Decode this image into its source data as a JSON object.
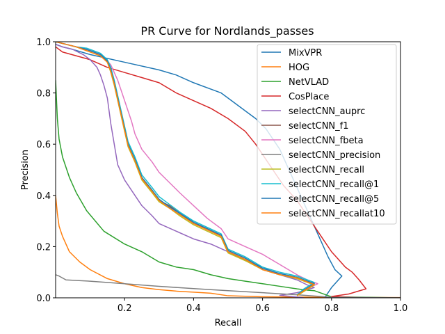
{
  "chart_data": {
    "type": "line",
    "title": "PR Curve for Nordlands_passes",
    "xlabel": "Recall",
    "ylabel": "Precision",
    "xlim": [
      0.0,
      1.0
    ],
    "ylim": [
      0.0,
      1.0
    ],
    "xticks": [
      "0.2",
      "0.4",
      "0.6",
      "0.8",
      "1.0"
    ],
    "xtick_values": [
      0.2,
      0.4,
      0.6,
      0.8,
      1.0
    ],
    "yticks": [
      "0.0",
      "0.2",
      "0.4",
      "0.6",
      "0.8",
      "1.0"
    ],
    "ytick_values": [
      0.0,
      0.2,
      0.4,
      0.6,
      0.8,
      1.0
    ],
    "grid": false,
    "legend_position": "top-right",
    "series": [
      {
        "name": "MixVPR",
        "color": "#1f77b4",
        "x": [
          0.0,
          0.02,
          0.05,
          0.1,
          0.2,
          0.3,
          0.35,
          0.4,
          0.45,
          0.48,
          0.51,
          0.55,
          0.58,
          0.61,
          0.63,
          0.65,
          0.67,
          0.69,
          0.71,
          0.73,
          0.75,
          0.77,
          0.79,
          0.81,
          0.83,
          0.8,
          0.78,
          0.9,
          1.0
        ],
        "y": [
          0.99,
          0.98,
          0.97,
          0.95,
          0.92,
          0.89,
          0.87,
          0.84,
          0.815,
          0.8,
          0.77,
          0.73,
          0.7,
          0.66,
          0.62,
          0.58,
          0.52,
          0.46,
          0.4,
          0.34,
          0.28,
          0.22,
          0.16,
          0.11,
          0.085,
          0.04,
          0.0,
          0.0,
          0.0
        ]
      },
      {
        "name": "HOG",
        "color": "#ff7f0e",
        "x": [
          0.0,
          0.005,
          0.01,
          0.02,
          0.04,
          0.07,
          0.1,
          0.15,
          0.2,
          0.25,
          0.3,
          0.35,
          0.4,
          0.45,
          0.5,
          0.6,
          0.8,
          1.0
        ],
        "y": [
          0.4,
          0.33,
          0.28,
          0.24,
          0.18,
          0.14,
          0.11,
          0.075,
          0.055,
          0.04,
          0.032,
          0.026,
          0.022,
          0.018,
          0.008,
          0.004,
          0.002,
          0.001
        ]
      },
      {
        "name": "NetVLAD",
        "color": "#2ca02c",
        "x": [
          0.0,
          0.005,
          0.01,
          0.02,
          0.04,
          0.06,
          0.09,
          0.14,
          0.2,
          0.25,
          0.3,
          0.35,
          0.4,
          0.45,
          0.5,
          0.55,
          0.6,
          0.65,
          0.7,
          0.73,
          0.75,
          0.8,
          0.9,
          1.0
        ],
        "y": [
          0.85,
          0.7,
          0.62,
          0.55,
          0.47,
          0.41,
          0.34,
          0.26,
          0.21,
          0.18,
          0.14,
          0.12,
          0.11,
          0.09,
          0.075,
          0.065,
          0.055,
          0.045,
          0.035,
          0.03,
          0.028,
          0.004,
          0.002,
          0.0
        ]
      },
      {
        "name": "CosPlace",
        "color": "#d62728",
        "x": [
          0.0,
          0.02,
          0.06,
          0.1,
          0.15,
          0.2,
          0.25,
          0.3,
          0.35,
          0.4,
          0.45,
          0.5,
          0.55,
          0.58,
          0.6,
          0.62,
          0.64,
          0.66,
          0.68,
          0.7,
          0.72,
          0.74,
          0.76,
          0.78,
          0.8,
          0.82,
          0.84,
          0.86,
          0.88,
          0.9,
          0.85,
          0.8,
          0.9,
          1.0
        ],
        "y": [
          0.98,
          0.96,
          0.945,
          0.93,
          0.9,
          0.88,
          0.86,
          0.84,
          0.8,
          0.77,
          0.74,
          0.7,
          0.65,
          0.6,
          0.56,
          0.52,
          0.48,
          0.44,
          0.41,
          0.38,
          0.34,
          0.3,
          0.26,
          0.22,
          0.18,
          0.15,
          0.12,
          0.1,
          0.07,
          0.035,
          0.015,
          0.005,
          0.0,
          0.0
        ]
      },
      {
        "name": "selectCNN_auprc",
        "color": "#9467bd",
        "x": [
          0.0,
          0.02,
          0.05,
          0.08,
          0.1,
          0.12,
          0.13,
          0.14,
          0.15,
          0.155,
          0.16,
          0.17,
          0.18,
          0.2,
          0.22,
          0.25,
          0.28,
          0.3,
          0.35,
          0.4,
          0.45,
          0.5,
          0.55,
          0.6,
          0.65,
          0.7,
          0.73,
          0.75,
          0.7,
          0.65,
          0.7,
          0.72
        ],
        "y": [
          0.99,
          0.98,
          0.97,
          0.95,
          0.93,
          0.9,
          0.87,
          0.83,
          0.78,
          0.73,
          0.68,
          0.6,
          0.52,
          0.46,
          0.42,
          0.36,
          0.32,
          0.29,
          0.26,
          0.23,
          0.21,
          0.18,
          0.145,
          0.12,
          0.09,
          0.07,
          0.05,
          0.04,
          0.02,
          0.01,
          0.003,
          0.0
        ]
      },
      {
        "name": "selectCNN_f1",
        "color": "#8c564b",
        "x": [
          0.0,
          0.03,
          0.06,
          0.09,
          0.11,
          0.13,
          0.15,
          0.16,
          0.17,
          0.18,
          0.19,
          0.2,
          0.21,
          0.23,
          0.25,
          0.28,
          0.3,
          0.33,
          0.36,
          0.4,
          0.44,
          0.48,
          0.5,
          0.55,
          0.6,
          0.65,
          0.7,
          0.73,
          0.75,
          0.72,
          0.7
        ],
        "y": [
          1.0,
          0.99,
          0.98,
          0.97,
          0.96,
          0.95,
          0.92,
          0.89,
          0.84,
          0.78,
          0.72,
          0.66,
          0.6,
          0.54,
          0.47,
          0.42,
          0.38,
          0.36,
          0.33,
          0.29,
          0.27,
          0.24,
          0.18,
          0.15,
          0.11,
          0.09,
          0.08,
          0.065,
          0.055,
          0.03,
          0.01
        ]
      },
      {
        "name": "selectCNN_fbeta",
        "color": "#e377c2",
        "x": [
          0.0,
          0.03,
          0.06,
          0.09,
          0.12,
          0.14,
          0.16,
          0.17,
          0.18,
          0.19,
          0.2,
          0.21,
          0.22,
          0.23,
          0.25,
          0.28,
          0.3,
          0.33,
          0.36,
          0.4,
          0.44,
          0.48,
          0.5,
          0.55,
          0.6,
          0.65,
          0.7,
          0.73,
          0.76,
          0.72,
          0.7
        ],
        "y": [
          1.0,
          0.99,
          0.98,
          0.97,
          0.96,
          0.94,
          0.91,
          0.88,
          0.85,
          0.81,
          0.77,
          0.73,
          0.69,
          0.64,
          0.58,
          0.53,
          0.49,
          0.45,
          0.41,
          0.36,
          0.31,
          0.27,
          0.23,
          0.2,
          0.17,
          0.13,
          0.09,
          0.07,
          0.055,
          0.03,
          0.01
        ]
      },
      {
        "name": "selectCNN_precision",
        "color": "#7f7f7f",
        "x": [
          0.0,
          0.01,
          0.03,
          0.1,
          0.2,
          0.3,
          0.4,
          0.5,
          0.6,
          0.7,
          0.76,
          0.8,
          1.0
        ],
        "y": [
          0.09,
          0.085,
          0.07,
          0.065,
          0.055,
          0.045,
          0.036,
          0.028,
          0.02,
          0.012,
          0.006,
          0.002,
          0.0
        ]
      },
      {
        "name": "selectCNN_recall",
        "color": "#bcbd22",
        "x": [
          0.0,
          0.03,
          0.06,
          0.09,
          0.11,
          0.13,
          0.15,
          0.16,
          0.17,
          0.18,
          0.19,
          0.2,
          0.21,
          0.23,
          0.25,
          0.28,
          0.3,
          0.33,
          0.36,
          0.4,
          0.44,
          0.48,
          0.5,
          0.55,
          0.6,
          0.65,
          0.7,
          0.73,
          0.75,
          0.72,
          0.7
        ],
        "y": [
          1.0,
          0.99,
          0.98,
          0.965,
          0.955,
          0.945,
          0.92,
          0.88,
          0.83,
          0.77,
          0.71,
          0.65,
          0.59,
          0.53,
          0.46,
          0.41,
          0.375,
          0.35,
          0.32,
          0.285,
          0.26,
          0.235,
          0.175,
          0.145,
          0.11,
          0.09,
          0.075,
          0.06,
          0.05,
          0.025,
          0.008
        ]
      },
      {
        "name": "selectCNN_recall@1",
        "color": "#17becf",
        "x": [
          0.0,
          0.03,
          0.06,
          0.09,
          0.11,
          0.13,
          0.15,
          0.16,
          0.17,
          0.18,
          0.19,
          0.2,
          0.21,
          0.23,
          0.25,
          0.28,
          0.3,
          0.33,
          0.36,
          0.4,
          0.44,
          0.48,
          0.5,
          0.55,
          0.6,
          0.65,
          0.7,
          0.73,
          0.75,
          0.72,
          0.7
        ],
        "y": [
          1.0,
          0.99,
          0.98,
          0.975,
          0.965,
          0.955,
          0.93,
          0.9,
          0.85,
          0.79,
          0.73,
          0.67,
          0.61,
          0.55,
          0.48,
          0.43,
          0.395,
          0.365,
          0.335,
          0.3,
          0.275,
          0.25,
          0.19,
          0.16,
          0.12,
          0.1,
          0.085,
          0.07,
          0.06,
          0.035,
          0.012
        ]
      },
      {
        "name": "selectCNN_recall@5",
        "color": "#1f77b4",
        "x": [
          0.0,
          0.03,
          0.06,
          0.09,
          0.11,
          0.13,
          0.15,
          0.16,
          0.17,
          0.18,
          0.19,
          0.2,
          0.21,
          0.23,
          0.25,
          0.28,
          0.3,
          0.33,
          0.36,
          0.4,
          0.44,
          0.48,
          0.5,
          0.55,
          0.6,
          0.65,
          0.7,
          0.73,
          0.75,
          0.72,
          0.7
        ],
        "y": [
          1.0,
          0.99,
          0.98,
          0.97,
          0.96,
          0.95,
          0.925,
          0.89,
          0.84,
          0.78,
          0.72,
          0.66,
          0.6,
          0.54,
          0.47,
          0.42,
          0.385,
          0.355,
          0.33,
          0.295,
          0.27,
          0.245,
          0.185,
          0.155,
          0.115,
          0.095,
          0.08,
          0.065,
          0.055,
          0.03,
          0.01
        ]
      },
      {
        "name": "selectCNN_recallat10",
        "color": "#ff7f0e",
        "x": [
          0.0,
          0.03,
          0.06,
          0.09,
          0.11,
          0.13,
          0.15,
          0.16,
          0.17,
          0.18,
          0.19,
          0.2,
          0.21,
          0.23,
          0.25,
          0.28,
          0.3,
          0.33,
          0.36,
          0.4,
          0.44,
          0.48,
          0.5,
          0.55,
          0.6,
          0.65,
          0.7,
          0.73,
          0.75,
          0.72,
          0.7
        ],
        "y": [
          1.0,
          0.99,
          0.98,
          0.965,
          0.955,
          0.945,
          0.92,
          0.885,
          0.835,
          0.775,
          0.715,
          0.655,
          0.595,
          0.535,
          0.465,
          0.415,
          0.38,
          0.35,
          0.325,
          0.29,
          0.265,
          0.24,
          0.18,
          0.15,
          0.11,
          0.09,
          0.078,
          0.062,
          0.052,
          0.028,
          0.009
        ]
      }
    ]
  }
}
